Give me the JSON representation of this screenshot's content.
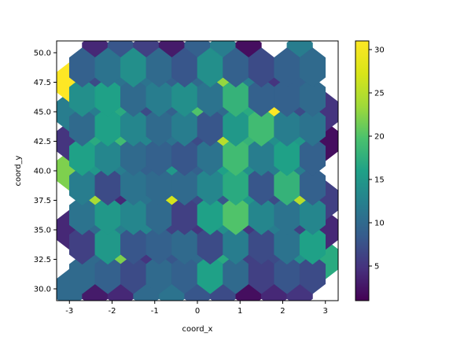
{
  "chart_data": {
    "type": "heatmap",
    "subtype": "hexbin",
    "xlabel": "coord_x",
    "ylabel": "coord_y",
    "xlim": [
      -3.3,
      3.3
    ],
    "ylim": [
      29.0,
      51.0
    ],
    "xticks": [
      -3,
      -2,
      -1,
      0,
      1,
      2,
      3
    ],
    "yticks": [
      30.0,
      32.5,
      35.0,
      37.5,
      40.0,
      42.5,
      45.0,
      47.5,
      50.0
    ],
    "ytick_labels": [
      "30.0",
      "32.5",
      "35.0",
      "37.5",
      "40.0",
      "42.5",
      "45.0",
      "47.5",
      "50.0"
    ],
    "colormap": "viridis",
    "colorbar": {
      "min": 1,
      "max": 31,
      "ticks": [
        5,
        10,
        15,
        20,
        25,
        30
      ]
    },
    "hex_centers_x": [
      -3.0,
      -2.4,
      -1.8,
      -1.2,
      -0.6,
      0.0,
      0.6,
      1.2,
      1.8,
      2.4,
      3.0
    ],
    "hex_offset_x": [
      -2.7,
      -2.1,
      -1.5,
      -0.9,
      -0.3,
      0.3,
      0.9,
      1.5,
      2.1,
      2.7
    ],
    "hex_rows": [
      {
        "y": 30.0,
        "values": [
          10,
          3,
          4,
          10,
          11,
          8,
          7,
          2,
          4,
          5,
          null
        ]
      },
      {
        "y": 32.5,
        "values": [
          null,
          10,
          22,
          5,
          8,
          10,
          17,
          6,
          7,
          14,
          17
        ]
      },
      {
        "y": 35.0,
        "values": [
          4,
          10,
          12,
          13,
          6,
          5,
          14,
          5,
          12,
          6,
          4
        ]
      },
      {
        "y": 37.5,
        "values": [
          null,
          24,
          4,
          11,
          27,
          7,
          8,
          15,
          7,
          25,
          6
        ]
      },
      {
        "y": 40.0,
        "values": [
          22,
          15,
          12,
          9,
          15,
          9,
          16,
          14,
          12,
          12,
          null
        ]
      },
      {
        "y": 42.5,
        "values": [
          5,
          17,
          19,
          13,
          11,
          7,
          25,
          18,
          14,
          15,
          2
        ]
      },
      {
        "y": 45.0,
        "values": [
          12,
          12,
          17,
          7,
          9,
          20,
          10,
          17,
          31,
          7,
          5
        ]
      },
      {
        "y": 47.5,
        "values": [
          31,
          7,
          11,
          11,
          9,
          10,
          23,
          12,
          5,
          9,
          null
        ]
      },
      {
        "y": 50.0,
        "values": [
          null,
          4,
          8,
          6,
          3,
          9,
          12,
          2,
          null,
          12,
          null
        ]
      }
    ]
  }
}
